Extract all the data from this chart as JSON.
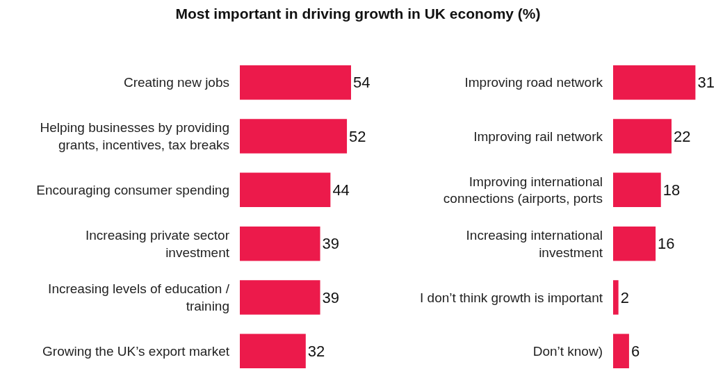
{
  "chart_data": [
    {
      "type": "bar",
      "orientation": "horizontal",
      "title": "Most important in driving growth in UK economy (%)",
      "categories": [
        "Creating new jobs",
        "Helping businesses by providing grants, incentives, tax breaks",
        "Encouraging consumer spending",
        "Increasing private sector investment",
        "Increasing levels of education / training",
        "Growing the UK’s export market"
      ],
      "values": [
        54,
        52,
        44,
        39,
        39,
        32
      ],
      "color": "#ec1a4b",
      "data_labels": true,
      "grid": false,
      "legend": false,
      "tick_labels": "y"
    },
    {
      "type": "bar",
      "orientation": "horizontal",
      "categories": [
        "Improving road network",
        "Improving rail network",
        "Improving international connections (airports, ports",
        "Increasing international investment",
        "I don’t think growth is important",
        "Don’t know)"
      ],
      "values": [
        31,
        22,
        18,
        16,
        2,
        6
      ],
      "color": "#ec1a4b",
      "data_labels": true,
      "grid": false,
      "legend": false,
      "tick_labels": "y"
    }
  ]
}
